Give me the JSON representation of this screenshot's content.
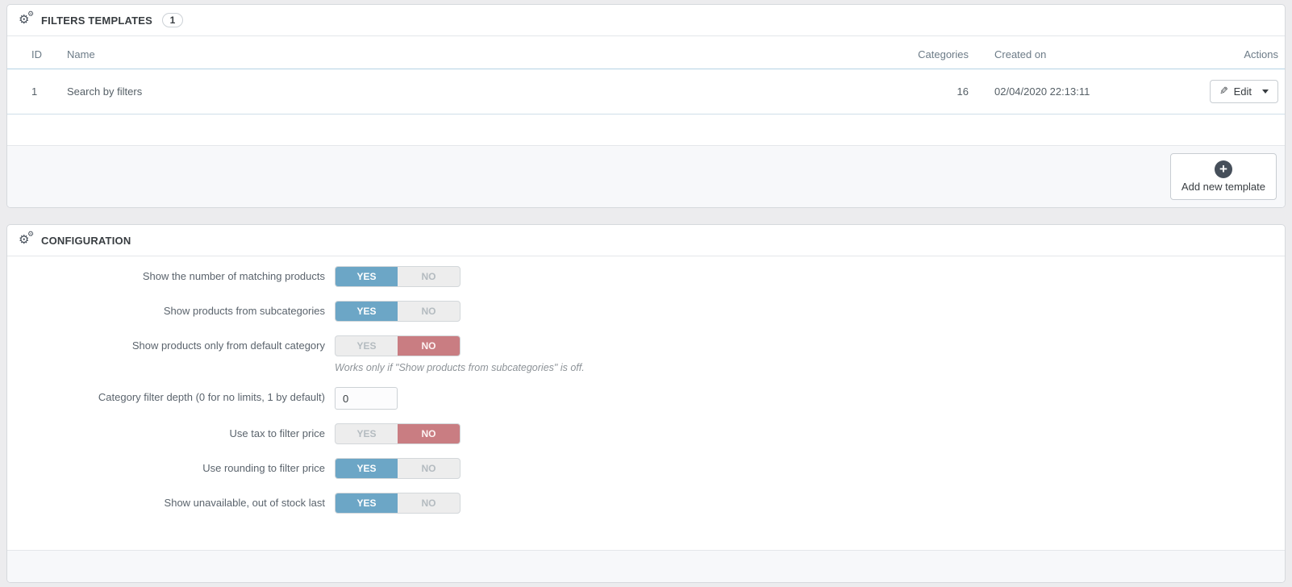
{
  "colors": {
    "switch_on_blue": "#6ca6c6",
    "switch_off_red": "#c97d82",
    "page_background": "#ececee",
    "panel_footer_background": "#f7f8fa",
    "icon_dark": "#464f5a"
  },
  "panels": {
    "templates": {
      "title": "FILTERS TEMPLATES",
      "count_badge": "1",
      "icon": "cogs-icon",
      "table": {
        "columns": [
          "ID",
          "Name",
          "Categories",
          "Created on",
          "Actions"
        ],
        "rows": [
          {
            "id": "1",
            "name": "Search by filters",
            "categories": "16",
            "created_on": "02/04/2020 22:13:11",
            "action_label": "Edit"
          }
        ]
      },
      "footer": {
        "add_button_label": "Add new template",
        "add_button_icon": "plus-circle-icon"
      }
    },
    "configuration": {
      "title": "CONFIGURATION",
      "icon": "cogs-icon",
      "switch_labels": {
        "yes": "YES",
        "no": "NO"
      },
      "fields": [
        {
          "name": "show-number-matching-products",
          "label": "Show the number of matching products",
          "type": "switch",
          "value": "yes"
        },
        {
          "name": "show-products-from-subcategories",
          "label": "Show products from subcategories",
          "type": "switch",
          "value": "yes"
        },
        {
          "name": "show-products-only-default-category",
          "label": "Show products only from default category",
          "type": "switch",
          "value": "no",
          "help": "Works only if \"Show products from subcategories\" is off."
        },
        {
          "name": "category-filter-depth",
          "label": "Category filter depth (0 for no limits, 1 by default)",
          "type": "text",
          "value": "0"
        },
        {
          "name": "use-tax-to-filter-price",
          "label": "Use tax to filter price",
          "type": "switch",
          "value": "no"
        },
        {
          "name": "use-rounding-to-filter-price",
          "label": "Use rounding to filter price",
          "type": "switch",
          "value": "yes"
        },
        {
          "name": "show-unavailable-out-of-stock-last",
          "label": "Show unavailable, out of stock last",
          "type": "switch",
          "value": "yes"
        }
      ]
    }
  }
}
